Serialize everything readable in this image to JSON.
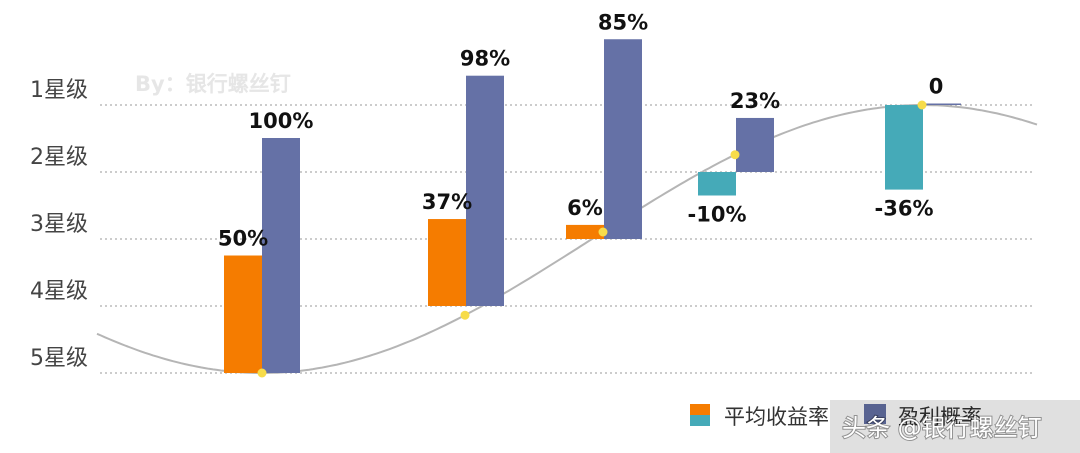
{
  "chart_data": {
    "type": "bar",
    "y_ticks": [
      "1星级",
      "2星级",
      "3星级",
      "4星级",
      "5星级"
    ],
    "series": [
      {
        "name": "平均收益率",
        "values": [
          50,
          37,
          6,
          -10,
          -36
        ]
      },
      {
        "name": "盈利概率",
        "values": [
          100,
          98,
          85,
          23,
          0
        ]
      }
    ],
    "value_labels": {
      "returns": [
        "50%",
        "37%",
        "6%",
        "-10%",
        "-36%"
      ],
      "probability": [
        "100%",
        "98%",
        "85%",
        "23%",
        "0"
      ]
    },
    "curve": "sine-wave",
    "grid": true,
    "legend_position": "bottom-right"
  },
  "watermark": "By：银行螺丝钉",
  "footer": "头条 @银行螺丝钉",
  "colors": {
    "orange": "#f57c00",
    "teal": "#45aab8",
    "purple": "#6571a6",
    "curve": "#b5b5b5",
    "dot": "#f7dc4a",
    "grid": "#9a9a9a"
  }
}
